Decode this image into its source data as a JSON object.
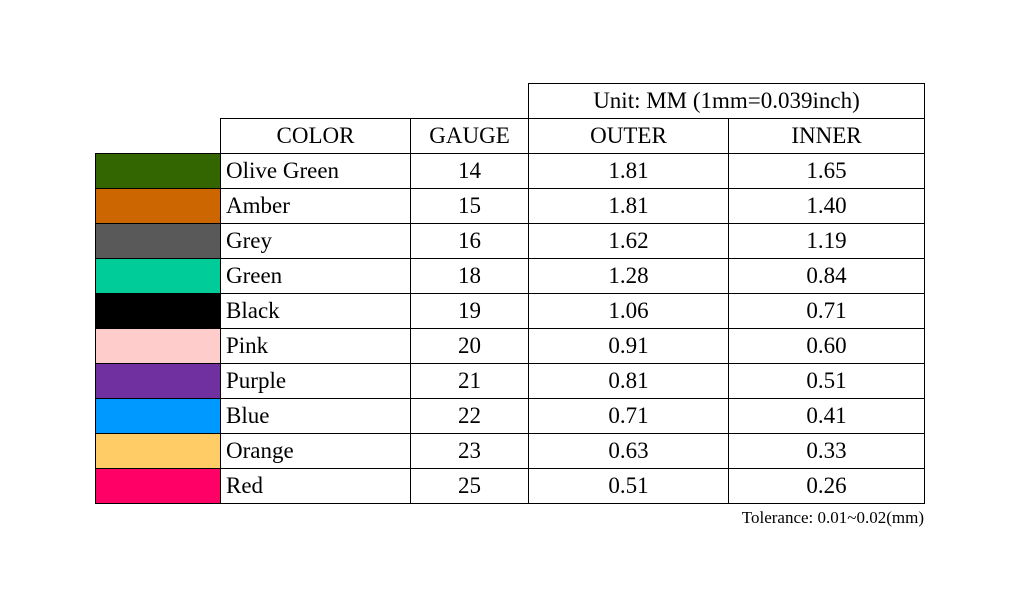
{
  "unit_header": "Unit: MM (1mm=0.039inch)",
  "table": {
    "headers": [
      "COLOR",
      "GAUGE",
      "OUTER",
      "INNER"
    ],
    "rows": [
      {
        "color": "#336600",
        "cells": [
          "Olive Green",
          "14",
          "1.81",
          "1.65"
        ]
      },
      {
        "color": "#cc6600",
        "cells": [
          "Amber",
          "15",
          "1.81",
          "1.40"
        ]
      },
      {
        "color": "#595959",
        "cells": [
          "Grey",
          "16",
          "1.62",
          "1.19"
        ]
      },
      {
        "color": "#00cc99",
        "cells": [
          "Green",
          "18",
          "1.28",
          "0.84"
        ]
      },
      {
        "color": "#000000",
        "cells": [
          "Black",
          "19",
          "1.06",
          "0.71"
        ]
      },
      {
        "color": "#ffcccc",
        "cells": [
          "Pink",
          "20",
          "0.91",
          "0.60"
        ]
      },
      {
        "color": "#7030a0",
        "cells": [
          "Purple",
          "21",
          "0.81",
          "0.51"
        ]
      },
      {
        "color": "#0099ff",
        "cells": [
          "Blue",
          "22",
          "0.71",
          "0.41"
        ]
      },
      {
        "color": "#ffcc66",
        "cells": [
          "Orange",
          "23",
          "0.63",
          "0.33"
        ]
      },
      {
        "color": "#ff0066",
        "cells": [
          "Red",
          "25",
          "0.51",
          "0.26"
        ]
      }
    ]
  },
  "footer": "Tolerance: 0.01~0.02(mm)"
}
